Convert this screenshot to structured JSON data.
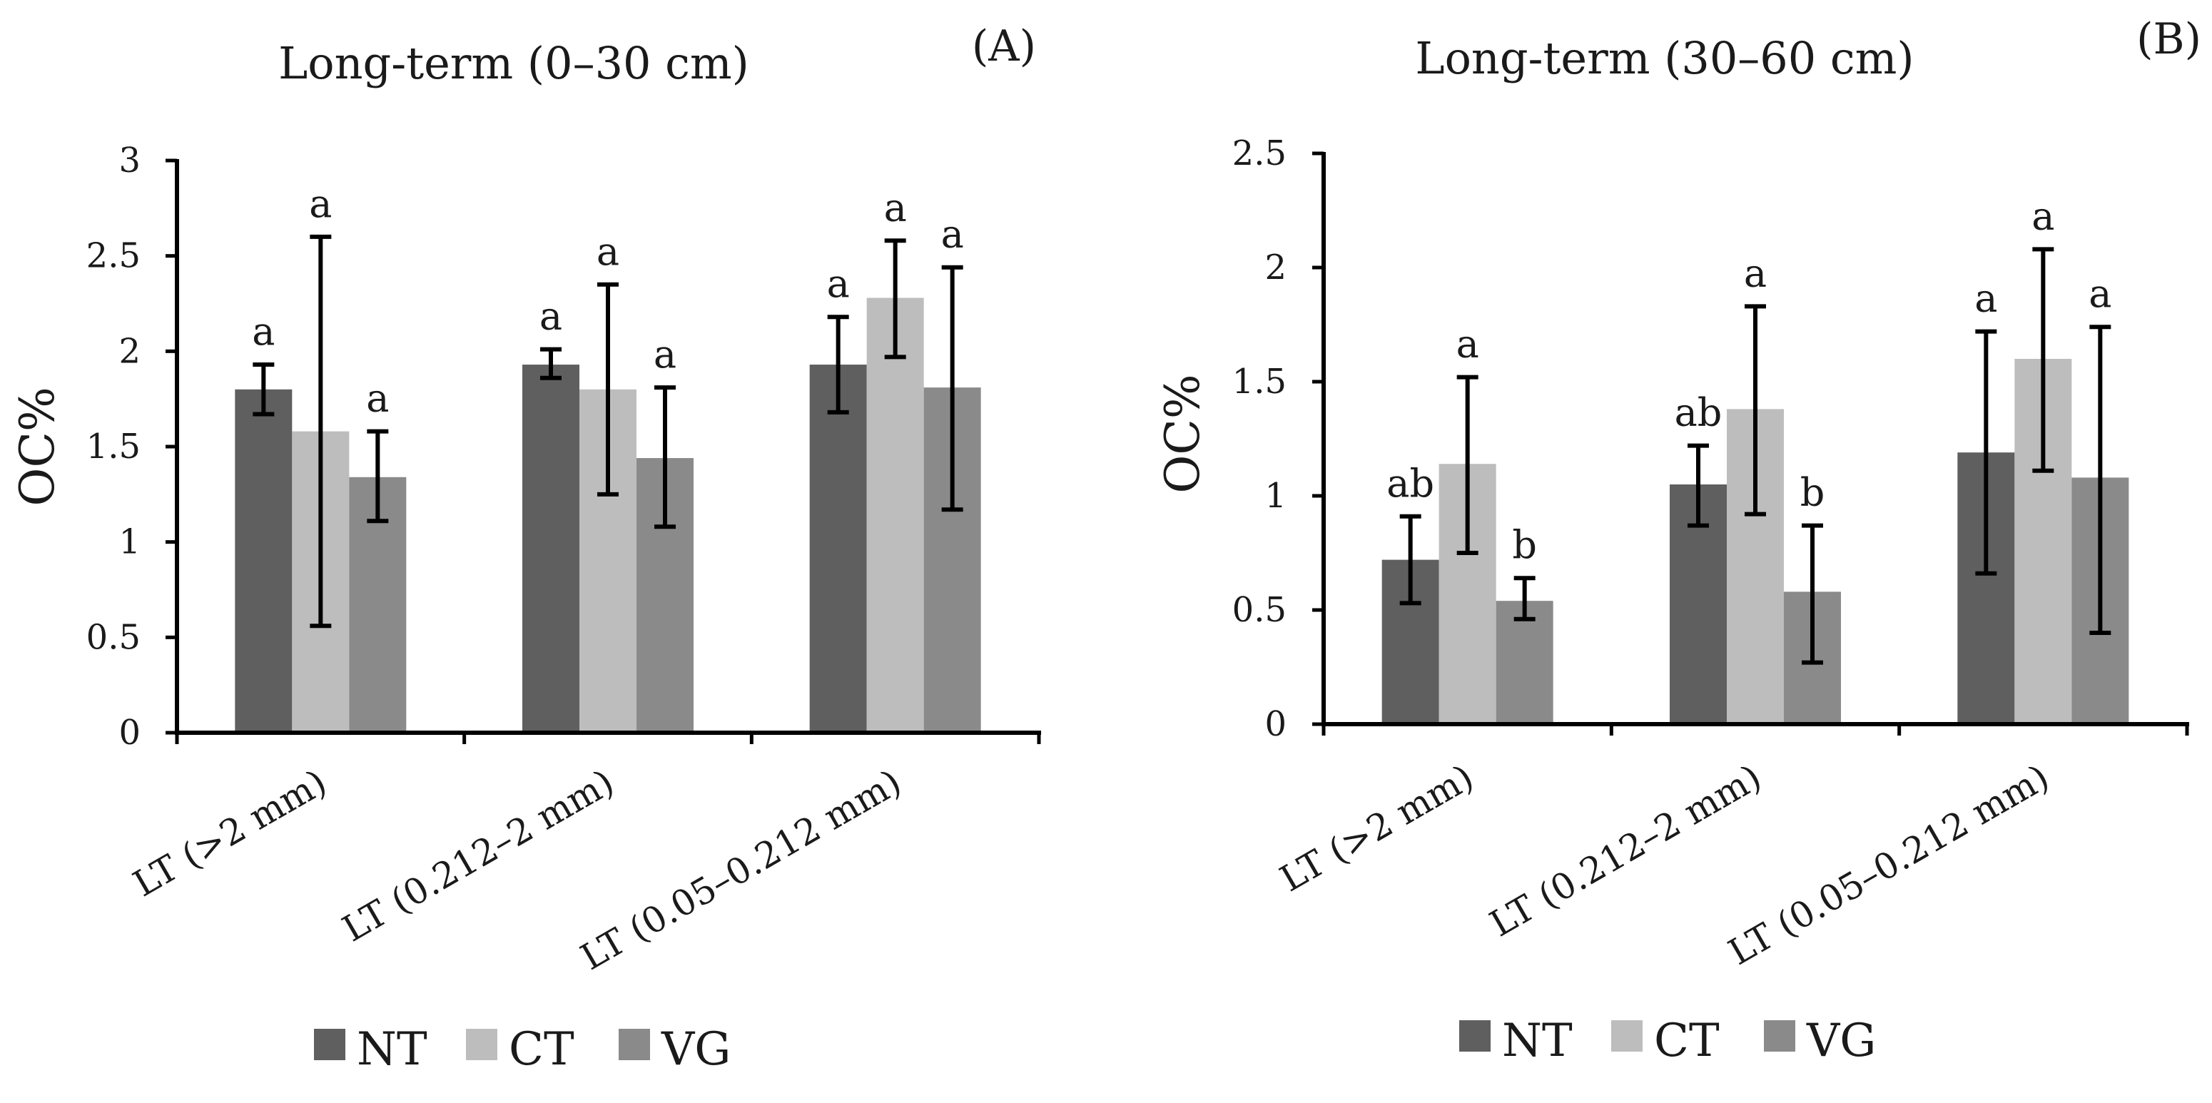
{
  "colors": {
    "NT": "#5f5f5f",
    "CT": "#bdbdbd",
    "VG": "#8a8a8a",
    "axis": "#000000",
    "error": "#000000"
  },
  "chart_data": [
    {
      "type": "bar",
      "panel": "(A)",
      "title": "Long-term (0–30 cm)",
      "ylabel": "OC%",
      "xlabel": "",
      "ylim": [
        0,
        3
      ],
      "yticks": [
        "0",
        "0.5",
        "1",
        "1.5",
        "2",
        "2.5",
        "3"
      ],
      "yticks_values": [
        0,
        0.5,
        1,
        1.5,
        2,
        2.5,
        3
      ],
      "categories": [
        "LT (>2 mm)",
        "LT (0.212–2 mm)",
        "LT (0.05–0.212 mm)"
      ],
      "series": [
        {
          "name": "NT",
          "values": [
            1.8,
            1.93,
            1.93
          ],
          "err_low": [
            1.67,
            1.86,
            1.68
          ],
          "err_high": [
            1.93,
            2.01,
            2.18
          ],
          "letters": [
            "a",
            "a",
            "a"
          ]
        },
        {
          "name": "CT",
          "values": [
            1.58,
            1.8,
            2.28
          ],
          "err_low": [
            0.56,
            1.25,
            1.97
          ],
          "err_high": [
            2.6,
            2.35,
            2.58
          ],
          "letters": [
            "a",
            "a",
            "a"
          ]
        },
        {
          "name": "VG",
          "values": [
            1.34,
            1.44,
            1.81
          ],
          "err_low": [
            1.11,
            1.08,
            1.17
          ],
          "err_high": [
            1.58,
            1.81,
            2.44
          ],
          "letters": [
            "a",
            "a",
            "a"
          ]
        }
      ],
      "legend": [
        "NT",
        "CT",
        "VG"
      ],
      "legend_position": "bottom",
      "grid": false
    },
    {
      "type": "bar",
      "panel": "(B)",
      "title": "Long-term (30–60 cm)",
      "ylabel": "OC%",
      "xlabel": "",
      "ylim": [
        0,
        2.5
      ],
      "yticks": [
        "0",
        "0.5",
        "1",
        "1.5",
        "2",
        "2.5"
      ],
      "yticks_values": [
        0,
        0.5,
        1,
        1.5,
        2,
        2.5
      ],
      "categories": [
        "LT (>2 mm)",
        "LT (0.212–2 mm)",
        "LT (0.05–0.212 mm)"
      ],
      "series": [
        {
          "name": "NT",
          "values": [
            0.72,
            1.05,
            1.19
          ],
          "err_low": [
            0.53,
            0.87,
            0.66
          ],
          "err_high": [
            0.91,
            1.22,
            1.72
          ],
          "letters": [
            "ab",
            "ab",
            "a"
          ]
        },
        {
          "name": "CT",
          "values": [
            1.14,
            1.38,
            1.6
          ],
          "err_low": [
            0.75,
            0.92,
            1.11
          ],
          "err_high": [
            1.52,
            1.83,
            2.08
          ],
          "letters": [
            "a",
            "a",
            "a"
          ]
        },
        {
          "name": "VG",
          "values": [
            0.54,
            0.58,
            1.08
          ],
          "err_low": [
            0.46,
            0.27,
            0.4
          ],
          "err_high": [
            0.64,
            0.87,
            1.74
          ],
          "letters": [
            "b",
            "b",
            "a"
          ]
        }
      ],
      "legend": [
        "NT",
        "CT",
        "VG"
      ],
      "legend_position": "bottom",
      "grid": false
    }
  ]
}
